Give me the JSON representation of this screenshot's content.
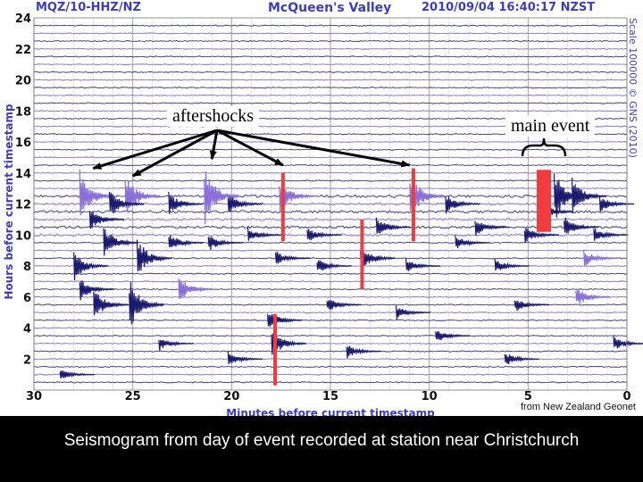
{
  "header": {
    "station": "MQZ/10-HHZ/NZ",
    "site": "McQueen's Valley",
    "timestamp": "2010/09/04 16:40:17 NZST",
    "scale": "Scale 100000 © GNS (2010)"
  },
  "annotations": {
    "aftershocks": "aftershocks",
    "main_event": "main event"
  },
  "credit": "from New Zealand Geonet",
  "caption": "Seismogram from day of event recorded at station near Christchurch",
  "colors": {
    "background": "#ffffff",
    "grid": "#9a9a9a",
    "trace_dark": "#1a1a6e",
    "trace_light": "#8a6fd8",
    "highlight": "#f03c3c",
    "axis_text": "#3d3dbd",
    "tick_text": "#111111"
  },
  "chart_data": {
    "type": "line",
    "title": "McQueen's Valley",
    "xlabel": "Minutes before current timestamp",
    "ylabel": "Hours before current timestamp",
    "xlim": [
      30,
      0
    ],
    "ylim": [
      0,
      24
    ],
    "x_ticks": [
      30,
      25,
      20,
      15,
      10,
      5,
      0
    ],
    "y_ticks": [
      2,
      4,
      6,
      8,
      10,
      12,
      14,
      16,
      18,
      20,
      22,
      24
    ],
    "trace_interval_hours": 0.5,
    "grid": true,
    "legend": "none",
    "highlighted_events": [
      {
        "label": "main event",
        "minutes": 4.2,
        "hours_from": 10.2,
        "hours_to": 14.2
      },
      {
        "minutes": 17.4,
        "hours_from": 9.6,
        "hours_to": 14.0
      },
      {
        "minutes": 13.4,
        "hours_from": 6.5,
        "hours_to": 11.0
      },
      {
        "minutes": 10.8,
        "hours_from": 9.6,
        "hours_to": 14.3
      },
      {
        "minutes": 17.8,
        "hours_from": 0.3,
        "hours_to": 4.9
      }
    ],
    "aftershock_arrows": [
      {
        "minutes": 27.0,
        "hours": 14.3
      },
      {
        "minutes": 25.0,
        "hours": 13.8
      },
      {
        "minutes": 21.0,
        "hours": 14.9
      },
      {
        "minutes": 17.4,
        "hours": 14.5
      },
      {
        "minutes": 11.0,
        "hours": 14.5
      }
    ],
    "bursts": [
      {
        "minutes": 27.5,
        "hours": 12.5,
        "amp": 1.8,
        "layer": "light"
      },
      {
        "minutes": 25.2,
        "hours": 12.5,
        "amp": 1.6,
        "layer": "light"
      },
      {
        "minutes": 21.2,
        "hours": 12.5,
        "amp": 2.0,
        "layer": "light"
      },
      {
        "minutes": 17.4,
        "hours": 12.5,
        "amp": 1.2,
        "layer": "light"
      },
      {
        "minutes": 10.8,
        "hours": 12.5,
        "amp": 1.6,
        "layer": "light"
      },
      {
        "minutes": 3.5,
        "hours": 12.5,
        "amp": 1.8,
        "layer": "dark"
      },
      {
        "minutes": 2.6,
        "hours": 12.5,
        "amp": 1.2,
        "layer": "dark"
      },
      {
        "minutes": 4.3,
        "hours": 11.5,
        "amp": 1.0,
        "layer": "dark"
      },
      {
        "minutes": 3.0,
        "hours": 10.5,
        "amp": 0.8,
        "layer": "dark"
      },
      {
        "minutes": 26.0,
        "hours": 12.0,
        "amp": 1.0,
        "layer": "dark"
      },
      {
        "minutes": 23.0,
        "hours": 12.0,
        "amp": 0.8,
        "layer": "dark"
      },
      {
        "minutes": 20.0,
        "hours": 12.0,
        "amp": 0.8,
        "layer": "dark"
      },
      {
        "minutes": 27.0,
        "hours": 11.0,
        "amp": 0.8,
        "layer": "dark"
      },
      {
        "minutes": 26.3,
        "hours": 9.5,
        "amp": 1.2,
        "layer": "dark"
      },
      {
        "minutes": 24.6,
        "hours": 8.5,
        "amp": 1.4,
        "layer": "dark"
      },
      {
        "minutes": 27.8,
        "hours": 8.0,
        "amp": 1.0,
        "layer": "dark"
      },
      {
        "minutes": 27.5,
        "hours": 6.5,
        "amp": 0.8,
        "layer": "dark"
      },
      {
        "minutes": 26.8,
        "hours": 5.5,
        "amp": 1.2,
        "layer": "dark"
      },
      {
        "minutes": 25.0,
        "hours": 5.5,
        "amp": 1.8,
        "layer": "dark"
      },
      {
        "minutes": 23.0,
        "hours": 9.5,
        "amp": 0.7,
        "layer": "dark"
      },
      {
        "minutes": 22.5,
        "hours": 6.5,
        "amp": 0.9,
        "layer": "light"
      },
      {
        "minutes": 21.0,
        "hours": 9.5,
        "amp": 0.6,
        "layer": "dark"
      },
      {
        "minutes": 19.0,
        "hours": 10.0,
        "amp": 0.6,
        "layer": "dark"
      },
      {
        "minutes": 17.6,
        "hours": 8.5,
        "amp": 0.5,
        "layer": "dark"
      },
      {
        "minutes": 17.8,
        "hours": 3.0,
        "amp": 1.0,
        "layer": "dark"
      },
      {
        "minutes": 18.0,
        "hours": 4.5,
        "amp": 0.7,
        "layer": "dark"
      },
      {
        "minutes": 16.0,
        "hours": 10.0,
        "amp": 0.5,
        "layer": "dark"
      },
      {
        "minutes": 15.5,
        "hours": 8.0,
        "amp": 0.5,
        "layer": "dark"
      },
      {
        "minutes": 13.3,
        "hours": 8.5,
        "amp": 1.0,
        "layer": "dark"
      },
      {
        "minutes": 12.5,
        "hours": 10.5,
        "amp": 0.7,
        "layer": "dark"
      },
      {
        "minutes": 11.0,
        "hours": 8.0,
        "amp": 0.5,
        "layer": "dark"
      },
      {
        "minutes": 9.0,
        "hours": 12.0,
        "amp": 0.7,
        "layer": "dark"
      },
      {
        "minutes": 8.5,
        "hours": 9.5,
        "amp": 0.5,
        "layer": "dark"
      },
      {
        "minutes": 7.5,
        "hours": 10.5,
        "amp": 0.6,
        "layer": "dark"
      },
      {
        "minutes": 6.5,
        "hours": 8.0,
        "amp": 0.5,
        "layer": "dark"
      },
      {
        "minutes": 5.0,
        "hours": 10.0,
        "amp": 0.6,
        "layer": "dark"
      },
      {
        "minutes": 2.0,
        "hours": 8.5,
        "amp": 0.6,
        "layer": "light"
      },
      {
        "minutes": 1.5,
        "hours": 10.0,
        "amp": 0.5,
        "layer": "dark"
      },
      {
        "minutes": 1.2,
        "hours": 12.0,
        "amp": 0.6,
        "layer": "dark"
      },
      {
        "minutes": 2.4,
        "hours": 6.0,
        "amp": 0.7,
        "layer": "light"
      },
      {
        "minutes": 0.5,
        "hours": 3.0,
        "amp": 0.5,
        "layer": "dark"
      },
      {
        "minutes": 20.0,
        "hours": 2.0,
        "amp": 0.5,
        "layer": "dark"
      },
      {
        "minutes": 14.0,
        "hours": 2.5,
        "amp": 0.5,
        "layer": "dark"
      },
      {
        "minutes": 9.5,
        "hours": 3.5,
        "amp": 0.5,
        "layer": "dark"
      },
      {
        "minutes": 6.0,
        "hours": 2.0,
        "amp": 0.5,
        "layer": "dark"
      },
      {
        "minutes": 15.0,
        "hours": 5.5,
        "amp": 0.5,
        "layer": "dark"
      },
      {
        "minutes": 11.5,
        "hours": 5.0,
        "amp": 0.5,
        "layer": "dark"
      },
      {
        "minutes": 5.5,
        "hours": 5.5,
        "amp": 0.5,
        "layer": "dark"
      },
      {
        "minutes": 28.5,
        "hours": 1.0,
        "amp": 0.4,
        "layer": "dark"
      },
      {
        "minutes": 23.5,
        "hours": 3.0,
        "amp": 0.5,
        "layer": "dark"
      }
    ]
  }
}
